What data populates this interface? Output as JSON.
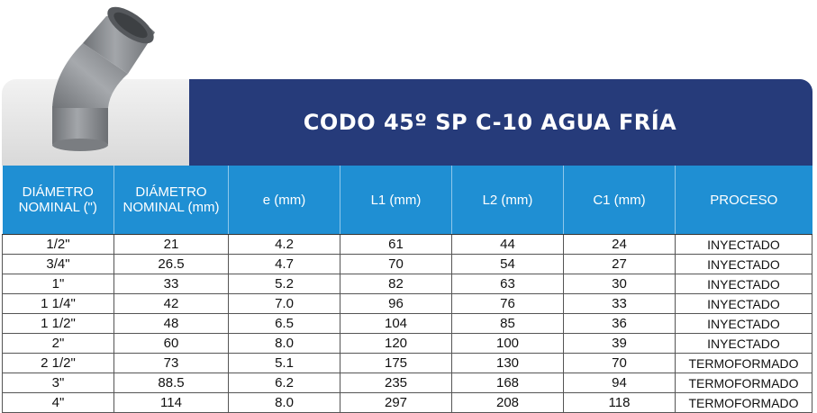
{
  "title": "CODO 45º SP  C-10 AGUA FRÍA",
  "colors": {
    "title_band": "#263b7a",
    "header_row": "#1f8fd3",
    "elbow_gray": "#8a8d91"
  },
  "headers": [
    "DIÁMETRO NOMINAL (\")",
    "DIÁMETRO NOMINAL (mm)",
    "e (mm)",
    "L1 (mm)",
    "L2 (mm)",
    "C1 (mm)",
    "PROCESO"
  ],
  "rows": [
    [
      "1/2\"",
      "21",
      "4.2",
      "61",
      "44",
      "24",
      "INYECTADO"
    ],
    [
      "3/4\"",
      "26.5",
      "4.7",
      "70",
      "54",
      "27",
      "INYECTADO"
    ],
    [
      "1\"",
      "33",
      "5.2",
      "82",
      "63",
      "30",
      "INYECTADO"
    ],
    [
      "1 1/4\"",
      "42",
      "7.0",
      "96",
      "76",
      "33",
      "INYECTADO"
    ],
    [
      "1 1/2\"",
      "48",
      "6.5",
      "104",
      "85",
      "36",
      "INYECTADO"
    ],
    [
      "2\"",
      "60",
      "8.0",
      "120",
      "100",
      "39",
      "INYECTADO"
    ],
    [
      "2 1/2\"",
      "73",
      "5.1",
      "175",
      "130",
      "70",
      "TERMOFORMADO"
    ],
    [
      "3\"",
      "88.5",
      "6.2",
      "235",
      "168",
      "94",
      "TERMOFORMADO"
    ],
    [
      "4\"",
      "114",
      "8.0",
      "297",
      "208",
      "118",
      "TERMOFORMADO"
    ]
  ]
}
